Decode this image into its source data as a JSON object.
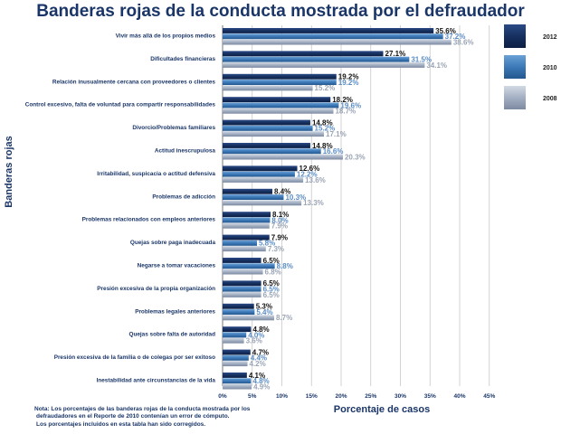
{
  "chart_data": {
    "type": "bar",
    "orientation": "horizontal",
    "title": "Banderas rojas de la conducta mostrada por el defraudador",
    "xlabel": "Porcentaje de casos",
    "ylabel": "Banderas rojas",
    "xlim": [
      0,
      45
    ],
    "xticks": [
      "0%",
      "5%",
      "10%",
      "15%",
      "20%",
      "25%",
      "30%",
      "35%",
      "40%",
      "45%"
    ],
    "grid": true,
    "legend_position": "right",
    "categories": [
      "Vivir más allá de los propios medios",
      "Dificultades financieras",
      "Relación inusualmente cercana con proveedores o clientes",
      "Control excesivo, falta de voluntad para compartir responsabilidades",
      "Divorcio/Problemas familiares",
      "Actitud inescrupulosa",
      "Irritabilidad, suspicacia o actitud defensiva",
      "Problemas de adicción",
      "Problemas relacionados con empleos anteriores",
      "Quejas sobre paga inadecuada",
      "Negarse a tomar vacaciones",
      "Presión excesiva de la propia organización",
      "Problemas legales anteriores",
      "Quejas sobre falta de autoridad",
      "Presión excesiva de la familia o de colegas por ser exitoso",
      "Inestabilidad ante circunstancias de la vida"
    ],
    "series": [
      {
        "name": "2012",
        "color": "#16305f",
        "values": [
          35.6,
          27.1,
          19.2,
          18.2,
          14.8,
          14.8,
          12.6,
          8.4,
          8.1,
          7.9,
          6.5,
          6.5,
          5.3,
          4.8,
          4.7,
          4.1
        ]
      },
      {
        "name": "2010",
        "color": "#3c79b7",
        "values": [
          37.2,
          31.5,
          19.2,
          19.6,
          15.2,
          16.6,
          12.2,
          10.3,
          8.0,
          5.8,
          8.8,
          6.5,
          5.4,
          4.0,
          4.4,
          4.8
        ]
      },
      {
        "name": "2008",
        "color": "#a3afc2",
        "values": [
          38.6,
          34.1,
          15.2,
          18.7,
          17.1,
          20.3,
          13.6,
          13.3,
          7.9,
          7.3,
          6.8,
          6.5,
          8.7,
          3.6,
          4.2,
          4.9
        ]
      }
    ]
  },
  "note": [
    "Nota: Los porcentajes de las banderas rojas de la conducta mostrada por los",
    "defraudadores en el Reporte de 2010 contenían un error de cómputo.",
    "Los porcentajes incluidos en esta tabla han sido corregidos."
  ]
}
